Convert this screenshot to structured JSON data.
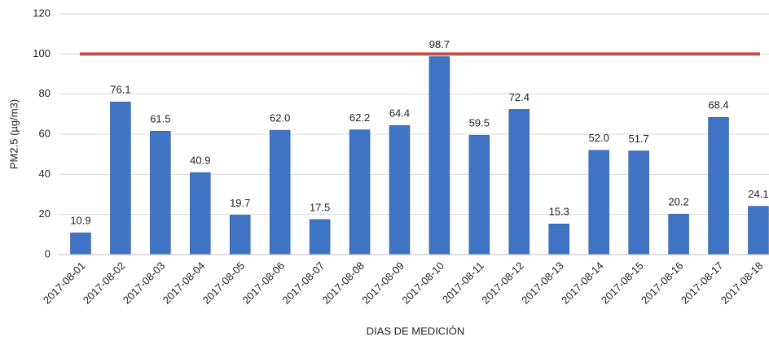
{
  "chart_data": {
    "type": "bar",
    "x_label": "DIAS DE MEDICIÓN",
    "y_label": "PM2.5 (µg/m3)",
    "categories": [
      "2017-08-01",
      "2017-08-02",
      "2017-08-03",
      "2017-08-04",
      "2017-08-05",
      "2017-08-06",
      "2017-08-07",
      "2017-08-08",
      "2017-08-09",
      "2017-08-10",
      "2017-08-11",
      "2017-08-12",
      "2017-08-13",
      "2017-08-14",
      "2017-08-15",
      "2017-08-16",
      "2017-08-17",
      "2017-08-18"
    ],
    "values": [
      10.9,
      76.1,
      61.5,
      40.9,
      19.7,
      62.0,
      17.5,
      62.2,
      64.4,
      98.7,
      59.5,
      72.4,
      15.3,
      52.0,
      51.7,
      20.2,
      68.4,
      24.1
    ],
    "value_labels": [
      "10.9",
      "76.1",
      "61.5",
      "40.9",
      "19.7",
      "62.0",
      "17.5",
      "62.2",
      "64.4",
      "98.7",
      "59.5",
      "72.4",
      "15.3",
      "52.0",
      "51.7",
      "20.2",
      "68.4",
      "24.1"
    ],
    "color": "#3f74c4",
    "reference_line": 100,
    "reference_color": "#c0504d",
    "ylim": [
      0,
      120
    ],
    "yticks": [
      0,
      20,
      40,
      60,
      80,
      100,
      120
    ],
    "grid": true
  }
}
